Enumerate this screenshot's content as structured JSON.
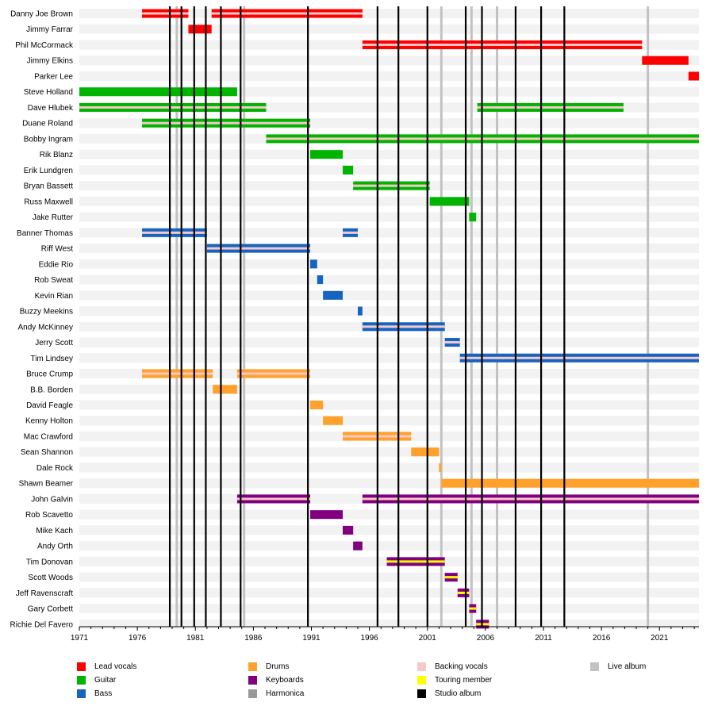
{
  "chart_data": {
    "type": "timeline",
    "x_axis": {
      "range": [
        1971,
        2024.4
      ],
      "ticks": [
        "1971",
        "1976",
        "1981",
        "1986",
        "1991",
        "1996",
        "2001",
        "2006",
        "2011",
        "2016",
        "2021"
      ]
    },
    "members": [
      "Danny Joe Brown",
      "Jimmy Farrar",
      "Phil McCormack",
      "Jimmy Elkins",
      "Parker Lee",
      "Steve Holland",
      "Dave Hlubek",
      "Duane Roland",
      "Bobby Ingram",
      "Rik Blanz",
      "Erik Lundgren",
      "Bryan Bassett",
      "Russ Maxwell",
      "Jake Rutter",
      "Banner Thomas",
      "Riff West",
      "Eddie Rio",
      "Rob Sweat",
      "Kevin Rian",
      "Buzzy Meekins",
      "Andy McKinney",
      "Jerry Scott",
      "Tim Lindsey",
      "Bruce Crump",
      "B.B. Borden",
      "David Feagle",
      "Kenny Holton",
      "Mac Crawford",
      "Sean Shannon",
      "Dale Rock",
      "Shawn Beamer",
      "John Galvin",
      "Rob Scavetto",
      "Mike Kach",
      "Andy Orth",
      "Tim Donovan",
      "Scott Woods",
      "Jeff Ravenscraft",
      "Gary Corbett",
      "Richie Del Favero"
    ],
    "roles": {
      "vocals": "#ff0000",
      "guitar": "#00b400",
      "bass": "#1565c0",
      "drums": "#ffa12a",
      "keyboards": "#800080",
      "harmonica": "#999999",
      "backing": "#f8c8c8",
      "touring": "#ffff00",
      "studio": "#000000",
      "live": "#c2c2c2"
    },
    "periods": [
      {
        "member": 0,
        "role": "vocals",
        "start": 1976.4,
        "end": 1980.4,
        "backing": true
      },
      {
        "member": 0,
        "role": "vocals",
        "start": 1982.4,
        "end": 1995.4,
        "backing": true
      },
      {
        "member": 1,
        "role": "vocals",
        "start": 1980.4,
        "end": 1982.4
      },
      {
        "member": 2,
        "role": "vocals",
        "start": 1995.4,
        "end": 2019.5,
        "backing": true
      },
      {
        "member": 3,
        "role": "vocals",
        "start": 2019.5,
        "end": 2023.5
      },
      {
        "member": 4,
        "role": "vocals",
        "start": 2023.5,
        "end": 2024.4
      },
      {
        "member": 5,
        "role": "guitar",
        "start": 1971.0,
        "end": 1984.6
      },
      {
        "member": 6,
        "role": "guitar",
        "start": 1971.0,
        "end": 1987.1,
        "backing": true
      },
      {
        "member": 6,
        "role": "guitar",
        "start": 2005.3,
        "end": 2017.9,
        "backing": true
      },
      {
        "member": 7,
        "role": "guitar",
        "start": 1976.4,
        "end": 1990.9,
        "backing": true
      },
      {
        "member": 8,
        "role": "guitar",
        "start": 1987.1,
        "end": 2024.4,
        "backing": true
      },
      {
        "member": 9,
        "role": "guitar",
        "start": 1990.9,
        "end": 1993.7
      },
      {
        "member": 10,
        "role": "guitar",
        "start": 1993.7,
        "end": 1994.6
      },
      {
        "member": 11,
        "role": "guitar",
        "start": 1994.6,
        "end": 2001.2,
        "backing": true
      },
      {
        "member": 12,
        "role": "guitar",
        "start": 2001.2,
        "end": 2004.6
      },
      {
        "member": 13,
        "role": "guitar",
        "start": 2004.6,
        "end": 2005.2
      },
      {
        "member": 14,
        "role": "bass",
        "start": 1976.4,
        "end": 1982.0,
        "backing": true
      },
      {
        "member": 14,
        "role": "bass",
        "start": 1993.7,
        "end": 1995.0,
        "backing": true
      },
      {
        "member": 15,
        "role": "bass",
        "start": 1982.0,
        "end": 1990.9,
        "backing": true
      },
      {
        "member": 16,
        "role": "bass",
        "start": 1990.9,
        "end": 1991.5
      },
      {
        "member": 17,
        "role": "bass",
        "start": 1991.5,
        "end": 1992.0
      },
      {
        "member": 18,
        "role": "bass",
        "start": 1992.0,
        "end": 1993.7
      },
      {
        "member": 19,
        "role": "bass",
        "start": 1995.0,
        "end": 1995.4
      },
      {
        "member": 20,
        "role": "bass",
        "start": 1995.4,
        "end": 2002.5,
        "backing": true
      },
      {
        "member": 21,
        "role": "bass",
        "start": 2002.5,
        "end": 2003.8,
        "backing": true
      },
      {
        "member": 22,
        "role": "bass",
        "start": 2003.8,
        "end": 2024.4,
        "backing": true
      },
      {
        "member": 23,
        "role": "drums",
        "start": 1976.4,
        "end": 1982.5,
        "backing": true
      },
      {
        "member": 23,
        "role": "drums",
        "start": 1984.6,
        "end": 1990.9,
        "backing": true
      },
      {
        "member": 24,
        "role": "drums",
        "start": 1982.5,
        "end": 1984.6
      },
      {
        "member": 25,
        "role": "drums",
        "start": 1990.9,
        "end": 1992.0
      },
      {
        "member": 26,
        "role": "drums",
        "start": 1992.0,
        "end": 1993.7
      },
      {
        "member": 27,
        "role": "drums",
        "start": 1993.7,
        "end": 1999.6,
        "backing": true
      },
      {
        "member": 28,
        "role": "drums",
        "start": 1999.6,
        "end": 2002.0
      },
      {
        "member": 29,
        "role": "drums",
        "start": 2002.0,
        "end": 2002.2
      },
      {
        "member": 30,
        "role": "drums",
        "start": 2002.2,
        "end": 2024.4
      },
      {
        "member": 31,
        "role": "keyboards",
        "start": 1984.6,
        "end": 1990.9,
        "backing": true
      },
      {
        "member": 31,
        "role": "keyboards",
        "start": 1995.4,
        "end": 2024.4,
        "backing": true
      },
      {
        "member": 32,
        "role": "keyboards",
        "start": 1990.9,
        "end": 1993.7
      },
      {
        "member": 33,
        "role": "keyboards",
        "start": 1993.7,
        "end": 1994.6
      },
      {
        "member": 34,
        "role": "keyboards",
        "start": 1994.6,
        "end": 1995.4
      },
      {
        "member": 35,
        "role": "keyboards",
        "start": 1997.5,
        "end": 2002.5,
        "touring": true
      },
      {
        "member": 36,
        "role": "keyboards",
        "start": 2002.5,
        "end": 2003.6,
        "touring": true
      },
      {
        "member": 37,
        "role": "keyboards",
        "start": 2003.6,
        "end": 2004.6,
        "touring": true
      },
      {
        "member": 38,
        "role": "keyboards",
        "start": 2004.6,
        "end": 2005.2,
        "touring": true
      },
      {
        "member": 39,
        "role": "keyboards",
        "start": 2005.2,
        "end": 2006.3,
        "touring": true
      }
    ],
    "studio_albums": [
      1978.8,
      1979.8,
      1980.9,
      1981.9,
      1983.2,
      1984.9,
      1990.7,
      1996.7,
      1998.5,
      2001.0,
      2004.3,
      2005.7,
      2008.6,
      2010.8,
      2012.8
    ],
    "live_albums": [
      1979.4,
      1985.2,
      2002.2,
      2004.8,
      2007.0,
      2020.0
    ],
    "legend": [
      {
        "label": "Lead vocals",
        "key": "vocals",
        "column": 0,
        "row": 0
      },
      {
        "label": "Guitar",
        "key": "guitar",
        "column": 0,
        "row": 1
      },
      {
        "label": "Bass",
        "key": "bass",
        "column": 0,
        "row": 2
      },
      {
        "label": "Drums",
        "key": "drums",
        "column": 1,
        "row": 0
      },
      {
        "label": "Keyboards",
        "key": "keyboards",
        "column": 1,
        "row": 1
      },
      {
        "label": "Harmonica",
        "key": "harmonica",
        "column": 1,
        "row": 2
      },
      {
        "label": "Backing vocals",
        "key": "backing",
        "column": 2,
        "row": 0
      },
      {
        "label": "Touring member",
        "key": "touring",
        "column": 2,
        "row": 1
      },
      {
        "label": "Studio album",
        "key": "studio",
        "column": 2,
        "row": 2
      },
      {
        "label": "Live album",
        "key": "live",
        "column": 3,
        "row": 0
      }
    ]
  }
}
